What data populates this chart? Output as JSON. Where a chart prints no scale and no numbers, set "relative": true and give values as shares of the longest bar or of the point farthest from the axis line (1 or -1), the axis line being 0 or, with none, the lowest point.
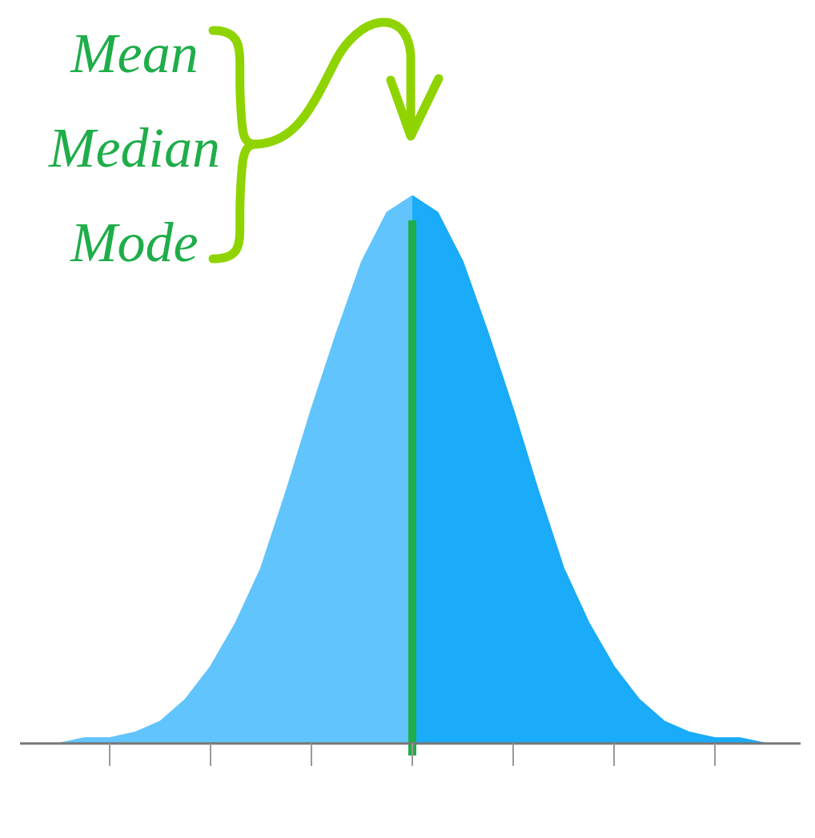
{
  "chart_data": {
    "type": "area",
    "relative": true,
    "legend": false,
    "grid": false,
    "categories": [
      null,
      null,
      null,
      null,
      null,
      null,
      null,
      null,
      null,
      null,
      null,
      null,
      null,
      null,
      null,
      null,
      null,
      null,
      null,
      null,
      null,
      null,
      null,
      null,
      null,
      null,
      null,
      null,
      null
    ],
    "series": [
      {
        "color": "#62c4fc",
        "values": [
          0,
          0.01,
          0.01,
          0.02,
          0.04,
          0.08,
          0.14,
          0.22,
          0.32,
          0.46,
          0.61,
          0.75,
          0.88,
          0.97,
          1,
          null,
          null,
          null,
          null,
          null,
          null,
          null,
          null,
          null,
          null,
          null,
          null,
          null,
          null
        ]
      },
      {
        "color": "#1aabf9",
        "values": [
          null,
          null,
          null,
          null,
          null,
          null,
          null,
          null,
          null,
          null,
          null,
          null,
          null,
          null,
          1,
          0.97,
          0.88,
          0.75,
          0.61,
          0.46,
          0.32,
          0.22,
          0.14,
          0.08,
          0.04,
          0.02,
          0.01,
          0.01,
          0
        ]
      }
    ],
    "ref_lines": [
      {
        "axis": "x",
        "label": "Mean Median Mode",
        "color": "#1fad4a"
      }
    ]
  }
}
